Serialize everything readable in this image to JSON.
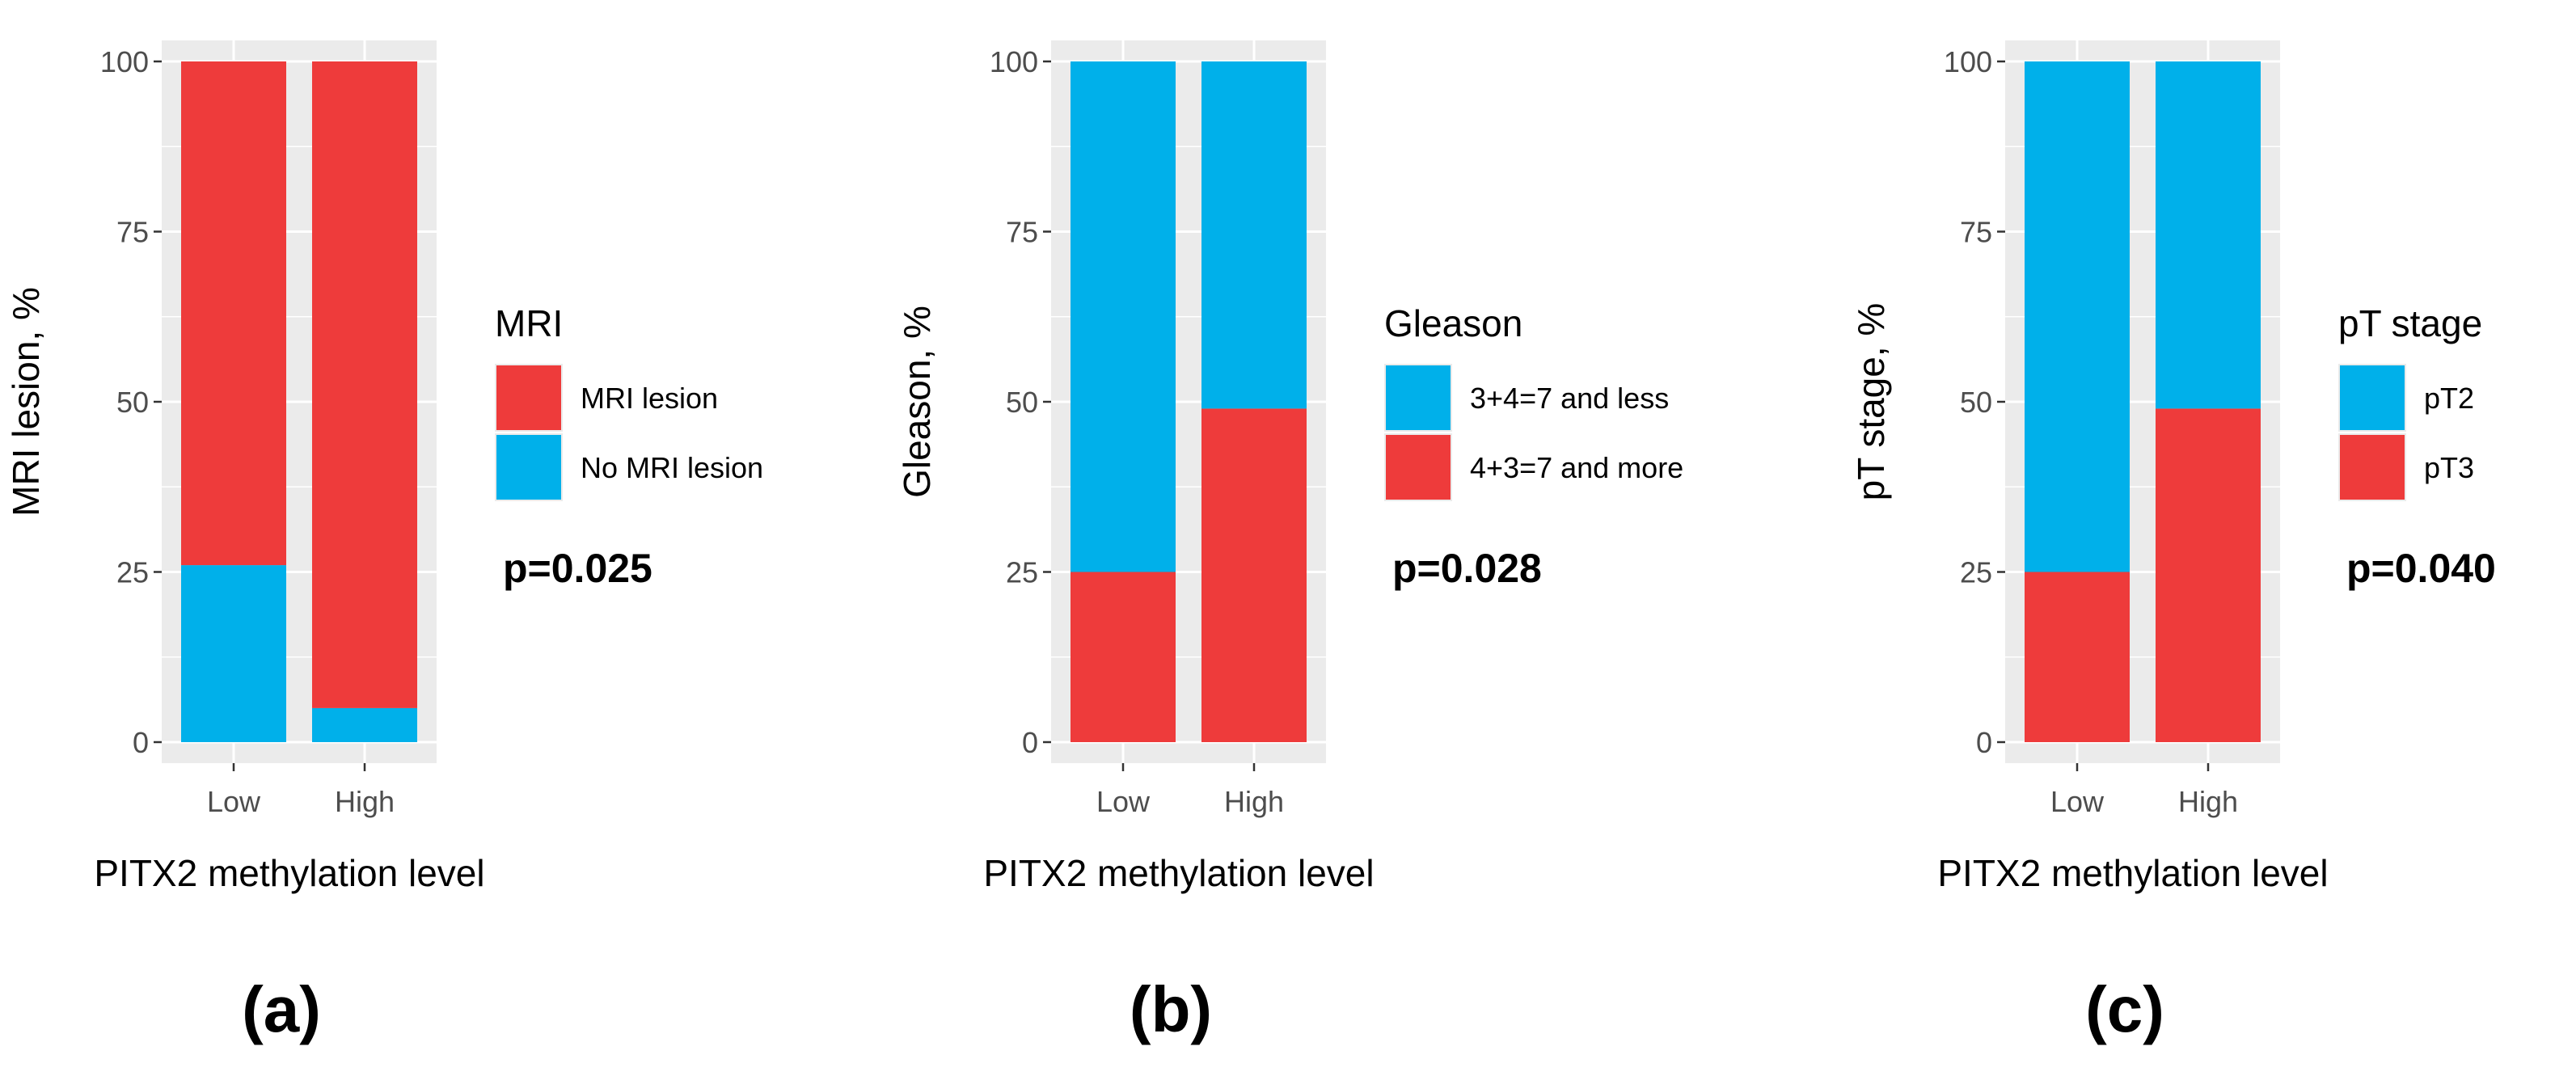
{
  "colors": {
    "red": "#EE3B3B",
    "blue": "#00B0EA",
    "panel_bg": "#EBEBEB",
    "grid": "#ffffff"
  },
  "chart_data": [
    {
      "type": "bar",
      "stacked": true,
      "panel_label": "(a)",
      "categories": [
        "Low",
        "High"
      ],
      "xlabel": "PITX2 methylation level",
      "ylabel": "MRI lesion, %",
      "ylim": [
        0,
        100
      ],
      "yticks": [
        "0",
        "25",
        "50",
        "75",
        "100"
      ],
      "legend_title": "MRI",
      "legend": [
        {
          "name": "MRI lesion",
          "color": "#EE3B3B"
        },
        {
          "name": "No MRI lesion",
          "color": "#00B0EA"
        }
      ],
      "series": [
        {
          "name": "No MRI lesion",
          "color": "#00B0EA",
          "values": [
            26,
            5
          ]
        },
        {
          "name": "MRI lesion",
          "color": "#EE3B3B",
          "values": [
            74,
            95
          ]
        }
      ],
      "annotation": "p=0.025"
    },
    {
      "type": "bar",
      "stacked": true,
      "panel_label": "(b)",
      "categories": [
        "Low",
        "High"
      ],
      "xlabel": "PITX2 methylation level",
      "ylabel": "Gleason, %",
      "ylim": [
        0,
        100
      ],
      "yticks": [
        "0",
        "25",
        "50",
        "75",
        "100"
      ],
      "legend_title": "Gleason",
      "legend": [
        {
          "name": "3+4=7 and less",
          "color": "#00B0EA"
        },
        {
          "name": "4+3=7 and more",
          "color": "#EE3B3B"
        }
      ],
      "series": [
        {
          "name": "4+3=7 and more",
          "color": "#EE3B3B",
          "values": [
            25,
            49
          ]
        },
        {
          "name": "3+4=7 and less",
          "color": "#00B0EA",
          "values": [
            75,
            51
          ]
        }
      ],
      "annotation": "p=0.028"
    },
    {
      "type": "bar",
      "stacked": true,
      "panel_label": "(c)",
      "categories": [
        "Low",
        "High"
      ],
      "xlabel": "PITX2 methylation level",
      "ylabel": "pT stage, %",
      "ylim": [
        0,
        100
      ],
      "yticks": [
        "0",
        "25",
        "50",
        "75",
        "100"
      ],
      "legend_title": "pT stage",
      "legend": [
        {
          "name": "pT2",
          "color": "#00B0EA"
        },
        {
          "name": "pT3",
          "color": "#EE3B3B"
        }
      ],
      "series": [
        {
          "name": "pT3",
          "color": "#EE3B3B",
          "values": [
            25,
            49
          ]
        },
        {
          "name": "pT2",
          "color": "#00B0EA",
          "values": [
            75,
            51
          ]
        }
      ],
      "annotation": "p=0.040"
    }
  ]
}
